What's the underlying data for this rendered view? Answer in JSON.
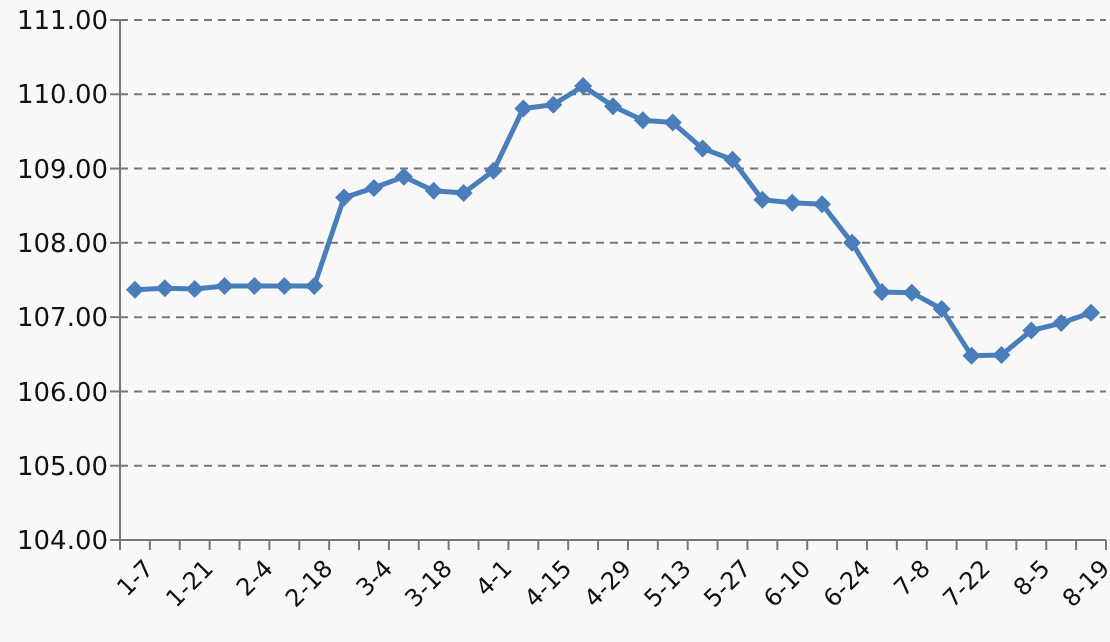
{
  "chart_data": {
    "type": "line",
    "categories": [
      "1-7",
      null,
      "1-21",
      null,
      "2-4",
      null,
      "2-18",
      null,
      "3-4",
      null,
      "3-18",
      null,
      "4-1",
      null,
      "4-15",
      null,
      "4-29",
      null,
      "5-13",
      null,
      "5-27",
      null,
      "6-10",
      null,
      "6-24",
      null,
      "7-8",
      null,
      "7-22",
      null,
      "8-5",
      null,
      "8-19"
    ],
    "series": [
      {
        "color": "#4a7ebb",
        "values": [
          107.37,
          107.39,
          107.38,
          107.42,
          107.42,
          107.42,
          107.42,
          108.61,
          108.74,
          108.89,
          108.7,
          108.67,
          108.97,
          109.81,
          109.86,
          110.11,
          109.84,
          109.65,
          109.62,
          109.27,
          109.12,
          108.58,
          108.54,
          108.52,
          108.0,
          107.34,
          107.33,
          107.11,
          106.48,
          106.49,
          106.82,
          106.92,
          107.06
        ]
      }
    ],
    "ylim": [
      104,
      111
    ],
    "yticks": [
      {
        "value": 104,
        "label": "104.00"
      },
      {
        "value": 105,
        "label": "105.00"
      },
      {
        "value": 106,
        "label": "106.00"
      },
      {
        "value": 107,
        "label": "107.00"
      },
      {
        "value": 108,
        "label": "108.00"
      },
      {
        "value": 109,
        "label": "109.00"
      },
      {
        "value": 110,
        "label": "110.00"
      },
      {
        "value": 111,
        "label": "111.00"
      }
    ],
    "grid": "y",
    "marker": "diamond",
    "line_style": "solid"
  }
}
